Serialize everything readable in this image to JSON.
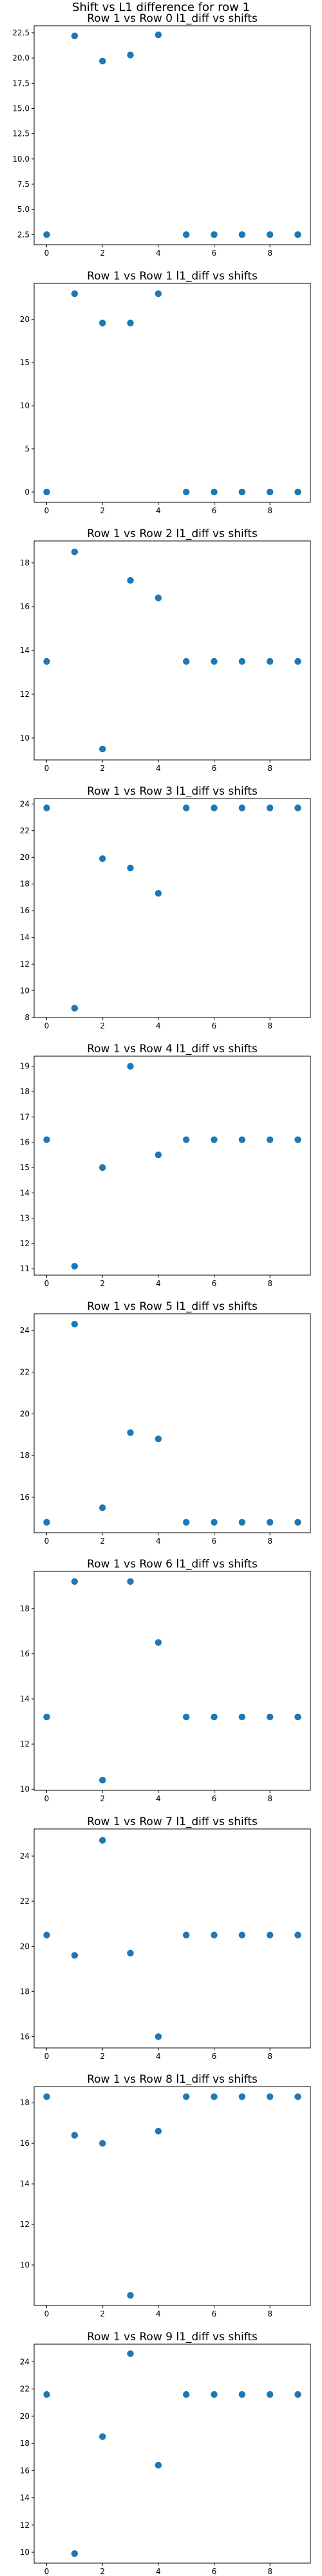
{
  "figure": {
    "suptitle": "Shift vs L1 difference for row 1"
  },
  "colors": {
    "marker": "#1f77b4",
    "axes": "#000000",
    "background": "#ffffff"
  },
  "chart_data": [
    {
      "type": "scatter",
      "title": "Row 1 vs Row 0 l1_diff vs shifts",
      "x": [
        0,
        1,
        2,
        3,
        4,
        5,
        6,
        7,
        8,
        9
      ],
      "y": [
        2.5,
        22.2,
        19.7,
        20.3,
        22.3,
        2.5,
        2.5,
        2.5,
        2.5,
        2.5
      ],
      "xlim": [
        -0.45,
        9.45
      ],
      "ylim": [
        1.5,
        23.2
      ],
      "xticks": [
        0,
        2,
        4,
        6,
        8
      ],
      "yticks": [
        2.5,
        5.0,
        7.5,
        10.0,
        12.5,
        15.0,
        17.5,
        20.0,
        22.5
      ],
      "ytick_labels": [
        "2.5",
        "5.0",
        "7.5",
        "10.0",
        "12.5",
        "15.0",
        "17.5",
        "20.0",
        "22.5"
      ],
      "grid": false
    },
    {
      "type": "scatter",
      "title": "Row 1 vs Row 1 l1_diff vs shifts",
      "x": [
        0,
        1,
        2,
        3,
        4,
        5,
        6,
        7,
        8,
        9
      ],
      "y": [
        0,
        23.0,
        19.6,
        19.6,
        23.0,
        0,
        0,
        0,
        0,
        0
      ],
      "xlim": [
        -0.45,
        9.45
      ],
      "ylim": [
        -1.2,
        24.2
      ],
      "xticks": [
        0,
        2,
        4,
        6,
        8
      ],
      "yticks": [
        0,
        5,
        10,
        15,
        20
      ],
      "ytick_labels": [
        "0",
        "5",
        "10",
        "15",
        "20"
      ],
      "grid": false
    },
    {
      "type": "scatter",
      "title": "Row 1 vs Row 2 l1_diff vs shifts",
      "x": [
        0,
        1,
        2,
        3,
        4,
        5,
        6,
        7,
        8,
        9
      ],
      "y": [
        13.5,
        18.5,
        9.5,
        17.2,
        16.4,
        13.5,
        13.5,
        13.5,
        13.5,
        13.5
      ],
      "xlim": [
        -0.45,
        9.45
      ],
      "ylim": [
        9.0,
        19.0
      ],
      "xticks": [
        0,
        2,
        4,
        6,
        8
      ],
      "yticks": [
        10,
        12,
        14,
        16,
        18
      ],
      "ytick_labels": [
        "10",
        "12",
        "14",
        "16",
        "18"
      ],
      "grid": false
    },
    {
      "type": "scatter",
      "title": "Row 1 vs Row 3 l1_diff vs shifts",
      "x": [
        0,
        1,
        2,
        3,
        4,
        5,
        6,
        7,
        8,
        9
      ],
      "y": [
        23.7,
        8.7,
        19.9,
        19.2,
        17.3,
        23.7,
        23.7,
        23.7,
        23.7,
        23.7
      ],
      "xlim": [
        -0.45,
        9.45
      ],
      "ylim": [
        8.0,
        24.4
      ],
      "xticks": [
        0,
        2,
        4,
        6,
        8
      ],
      "yticks": [
        8,
        10,
        12,
        14,
        16,
        18,
        20,
        22,
        24
      ],
      "ytick_labels": [
        "8",
        "10",
        "12",
        "14",
        "16",
        "18",
        "20",
        "22",
        "24"
      ],
      "grid": false
    },
    {
      "type": "scatter",
      "title": "Row 1 vs Row 4 l1_diff vs shifts",
      "x": [
        0,
        1,
        2,
        3,
        4,
        5,
        6,
        7,
        8,
        9
      ],
      "y": [
        16.1,
        11.1,
        15.0,
        19.0,
        15.5,
        16.1,
        16.1,
        16.1,
        16.1,
        16.1
      ],
      "xlim": [
        -0.45,
        9.45
      ],
      "ylim": [
        10.75,
        19.4
      ],
      "xticks": [
        0,
        2,
        4,
        6,
        8
      ],
      "yticks": [
        11,
        12,
        13,
        14,
        15,
        16,
        17,
        18,
        19
      ],
      "ytick_labels": [
        "11",
        "12",
        "13",
        "14",
        "15",
        "16",
        "17",
        "18",
        "19"
      ],
      "grid": false
    },
    {
      "type": "scatter",
      "title": "Row 1 vs Row 5 l1_diff vs shifts",
      "x": [
        0,
        1,
        2,
        3,
        4,
        5,
        6,
        7,
        8,
        9
      ],
      "y": [
        14.8,
        24.3,
        15.5,
        19.1,
        18.8,
        14.8,
        14.8,
        14.8,
        14.8,
        14.8
      ],
      "xlim": [
        -0.45,
        9.45
      ],
      "ylim": [
        14.3,
        24.8
      ],
      "xticks": [
        0,
        2,
        4,
        6,
        8
      ],
      "yticks": [
        16,
        18,
        20,
        22,
        24
      ],
      "ytick_labels": [
        "16",
        "18",
        "20",
        "22",
        "24"
      ],
      "grid": false
    },
    {
      "type": "scatter",
      "title": "Row 1 vs Row 6 l1_diff vs shifts",
      "x": [
        0,
        1,
        2,
        3,
        4,
        5,
        6,
        7,
        8,
        9
      ],
      "y": [
        13.2,
        19.2,
        10.4,
        19.2,
        16.5,
        13.2,
        13.2,
        13.2,
        13.2,
        13.2
      ],
      "xlim": [
        -0.45,
        9.45
      ],
      "ylim": [
        9.95,
        19.65
      ],
      "xticks": [
        0,
        2,
        4,
        6,
        8
      ],
      "yticks": [
        10,
        12,
        14,
        16,
        18
      ],
      "ytick_labels": [
        "10",
        "12",
        "14",
        "16",
        "18"
      ],
      "grid": false
    },
    {
      "type": "scatter",
      "title": "Row 1 vs Row 7 l1_diff vs shifts",
      "x": [
        0,
        1,
        2,
        3,
        4,
        5,
        6,
        7,
        8,
        9
      ],
      "y": [
        20.5,
        19.6,
        24.7,
        19.7,
        16.0,
        20.5,
        20.5,
        20.5,
        20.5,
        20.5
      ],
      "xlim": [
        -0.45,
        9.45
      ],
      "ylim": [
        15.5,
        25.2
      ],
      "xticks": [
        0,
        2,
        4,
        6,
        8
      ],
      "yticks": [
        16,
        18,
        20,
        22,
        24
      ],
      "ytick_labels": [
        "16",
        "18",
        "20",
        "22",
        "24"
      ],
      "grid": false
    },
    {
      "type": "scatter",
      "title": "Row 1 vs Row 8 l1_diff vs shifts",
      "x": [
        0,
        1,
        2,
        3,
        4,
        5,
        6,
        7,
        8,
        9
      ],
      "y": [
        18.3,
        16.4,
        16.0,
        8.5,
        16.6,
        18.3,
        18.3,
        18.3,
        18.3,
        18.3
      ],
      "xlim": [
        -0.45,
        9.45
      ],
      "ylim": [
        8.0,
        18.8
      ],
      "xticks": [
        0,
        2,
        4,
        6,
        8
      ],
      "yticks": [
        10,
        12,
        14,
        16,
        18
      ],
      "ytick_labels": [
        "10",
        "12",
        "14",
        "16",
        "18"
      ],
      "grid": false
    },
    {
      "type": "scatter",
      "title": "Row 1 vs Row 9 l1_diff vs shifts",
      "x": [
        0,
        1,
        2,
        3,
        4,
        5,
        6,
        7,
        8,
        9
      ],
      "y": [
        21.6,
        9.9,
        18.5,
        24.6,
        16.4,
        21.6,
        21.6,
        21.6,
        21.6,
        21.6
      ],
      "xlim": [
        -0.45,
        9.45
      ],
      "ylim": [
        9.2,
        25.3
      ],
      "xticks": [
        0,
        2,
        4,
        6,
        8
      ],
      "yticks": [
        10,
        12,
        14,
        16,
        18,
        20,
        22,
        24
      ],
      "ytick_labels": [
        "10",
        "12",
        "14",
        "16",
        "18",
        "20",
        "22",
        "24"
      ],
      "grid": false
    }
  ]
}
